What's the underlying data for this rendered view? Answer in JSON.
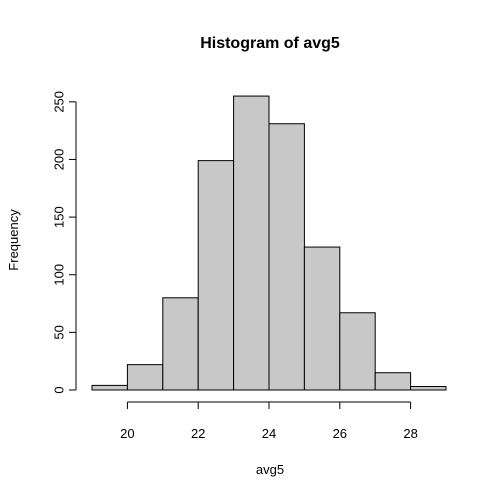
{
  "chart_data": {
    "type": "bar",
    "title": "Histogram of avg5",
    "xlabel": "avg5",
    "ylabel": "Frequency",
    "bins": [
      {
        "from": 19,
        "to": 20,
        "count": 4
      },
      {
        "from": 20,
        "to": 21,
        "count": 22
      },
      {
        "from": 21,
        "to": 22,
        "count": 80
      },
      {
        "from": 22,
        "to": 23,
        "count": 199
      },
      {
        "from": 23,
        "to": 24,
        "count": 255
      },
      {
        "from": 24,
        "to": 25,
        "count": 231
      },
      {
        "from": 25,
        "to": 26,
        "count": 124
      },
      {
        "from": 26,
        "to": 27,
        "count": 67
      },
      {
        "from": 27,
        "to": 28,
        "count": 15
      },
      {
        "from": 28,
        "to": 29,
        "count": 3
      }
    ],
    "xlim": [
      19,
      29
    ],
    "ylim": [
      0,
      262
    ],
    "x_ticks": [
      20,
      22,
      24,
      26,
      28
    ],
    "y_ticks": [
      0,
      50,
      100,
      150,
      200,
      250
    ],
    "x_tick_labels": [
      "20",
      "22",
      "24",
      "26",
      "28"
    ],
    "y_tick_labels": [
      "0",
      "50",
      "100",
      "150",
      "200",
      "250"
    ],
    "grid": false,
    "colors": {
      "bar_fill": "#c8c8c8",
      "bar_stroke": "#000000"
    }
  }
}
